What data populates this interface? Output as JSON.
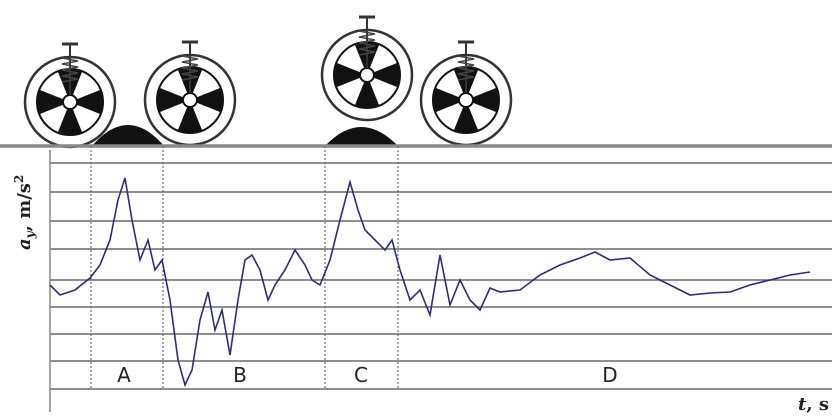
{
  "y_label": {
    "symbol": "a",
    "subscript": "y",
    "unit": ", m/s",
    "superscript": "2"
  },
  "x_label": {
    "symbol": "t",
    "unit": ", s"
  },
  "segments": [
    "A",
    "B",
    "C",
    "D"
  ]
}
